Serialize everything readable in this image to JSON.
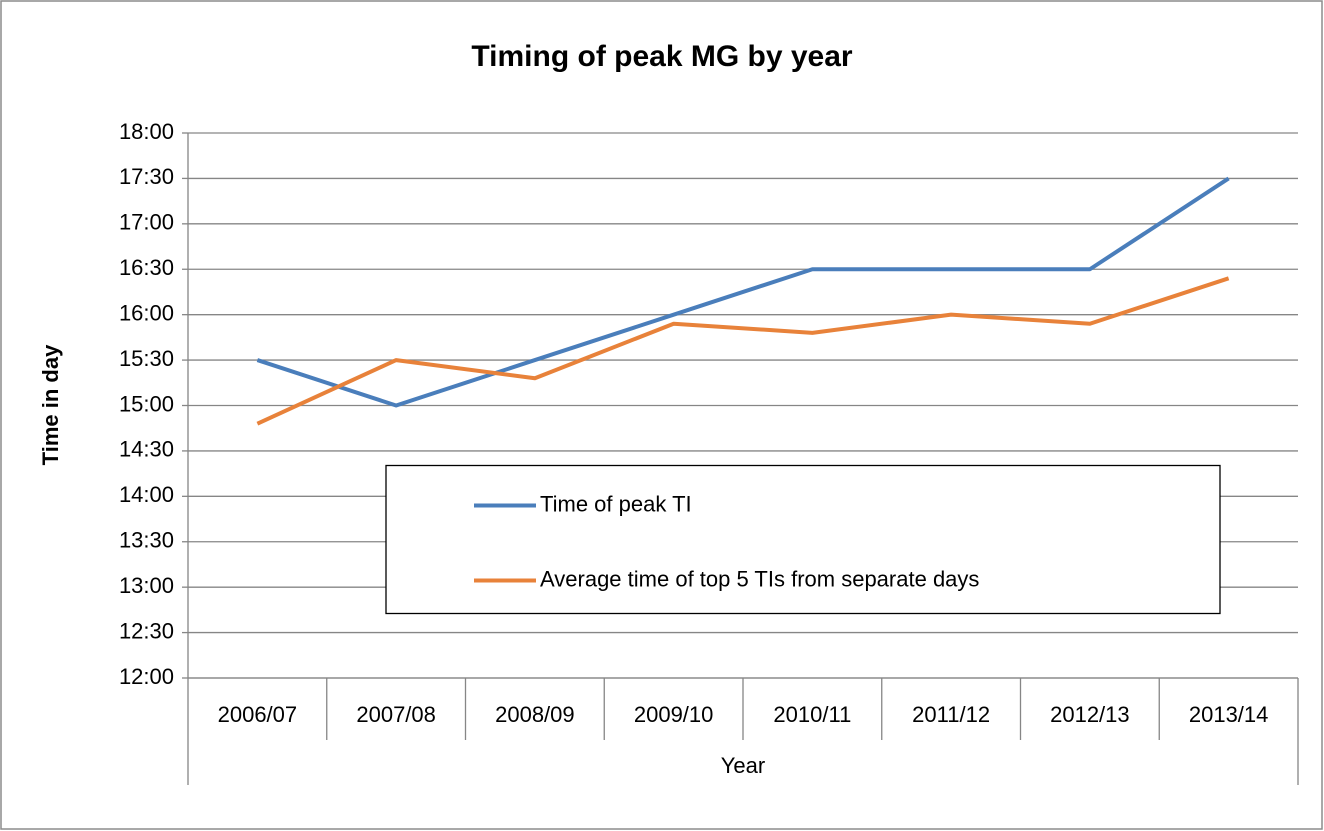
{
  "chart_data": {
    "type": "line",
    "title": "Timing of peak MG by year",
    "x_label": "Year",
    "y_label": "Time in day",
    "categories": [
      "2006/07",
      "2007/08",
      "2008/09",
      "2009/10",
      "2010/11",
      "2011/12",
      "2012/13",
      "2013/14"
    ],
    "series": [
      {
        "name": "Time of peak TI",
        "color": "#4a7ebb",
        "values": [
          15.5,
          15.0,
          15.5,
          16.0,
          16.5,
          16.5,
          16.5,
          17.5
        ]
      },
      {
        "name": "Average time of top 5 TIs from separate days",
        "color": "#e8823a",
        "values": [
          14.8,
          15.5,
          15.3,
          15.9,
          15.8,
          16.0,
          15.9,
          16.4
        ]
      }
    ],
    "ylim": [
      12,
      18
    ],
    "yticks": [
      {
        "value": 12,
        "label": "12:00"
      },
      {
        "value": 12.5,
        "label": "12:30"
      },
      {
        "value": 13,
        "label": "13:00"
      },
      {
        "value": 13.5,
        "label": "13:30"
      },
      {
        "value": 14,
        "label": "14:00"
      },
      {
        "value": 14.5,
        "label": "14:30"
      },
      {
        "value": 15,
        "label": "15:00"
      },
      {
        "value": 15.5,
        "label": "15:30"
      },
      {
        "value": 16,
        "label": "16:00"
      },
      {
        "value": 16.5,
        "label": "16:30"
      },
      {
        "value": 17,
        "label": "17:00"
      },
      {
        "value": 17.5,
        "label": "17:30"
      },
      {
        "value": 18,
        "label": "18:00"
      }
    ],
    "grid": true,
    "legend": "center"
  }
}
